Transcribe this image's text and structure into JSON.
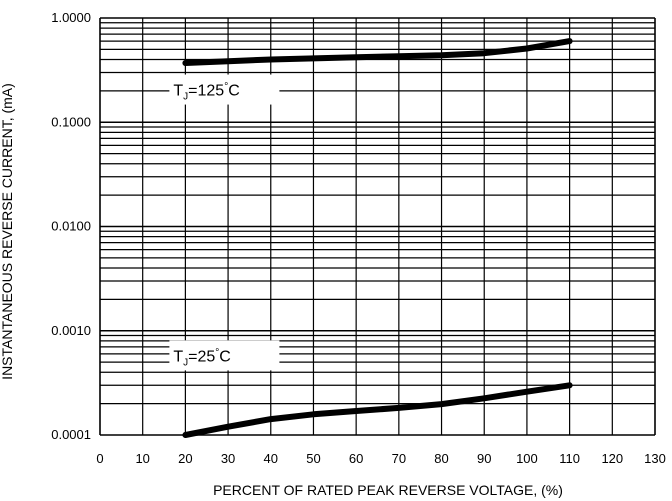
{
  "chart_data": {
    "type": "line",
    "title": "",
    "xlabel": "PERCENT OF RATED PEAK REVERSE VOLTAGE, (%)",
    "ylabel": "INSTANTANEOUS REVERSE CURRENT, (mA)",
    "xlim": [
      0,
      130
    ],
    "ylim": [
      0.0001,
      1.0
    ],
    "yscale": "log",
    "grid": true,
    "x_ticks": [
      "0",
      "10",
      "20",
      "30",
      "40",
      "50",
      "60",
      "70",
      "80",
      "90",
      "100",
      "110",
      "120",
      "130"
    ],
    "y_ticks": [
      "0.0001",
      "0.0010",
      "0.0100",
      "0.1000",
      "1.0000"
    ],
    "series": [
      {
        "x": [
          20,
          30,
          40,
          50,
          60,
          70,
          80,
          90,
          100,
          110
        ],
        "y": [
          0.37,
          0.385,
          0.4,
          0.41,
          0.42,
          0.43,
          0.44,
          0.46,
          0.51,
          0.6
        ]
      },
      {
        "x": [
          20,
          30,
          40,
          50,
          60,
          70,
          80,
          90,
          100,
          110
        ],
        "y": [
          0.0001,
          0.00012,
          0.000142,
          0.000158,
          0.00017,
          0.000182,
          0.000198,
          0.000225,
          0.00026,
          0.0003
        ]
      }
    ],
    "annotations": [
      {
        "main": "T",
        "sub": "J",
        "rest": "=125",
        "deg": "°",
        "unit": "C",
        "x": 20,
        "y": 0.22
      },
      {
        "main": "T",
        "sub": "J",
        "rest": "=25",
        "deg": "°",
        "unit": "C",
        "x": 20,
        "y": 0.00062
      }
    ]
  }
}
